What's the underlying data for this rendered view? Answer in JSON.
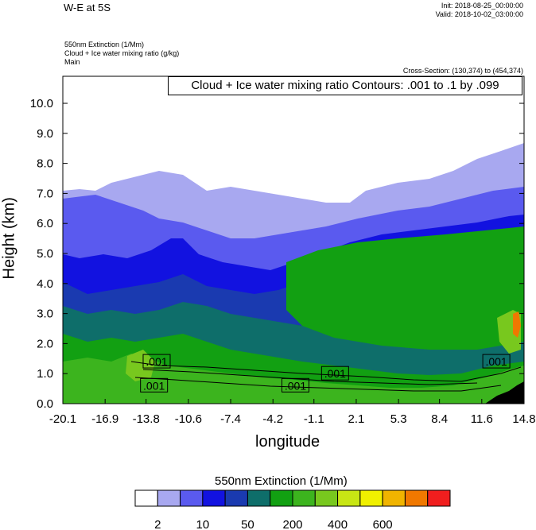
{
  "header": {
    "title": "W-E at 5S",
    "init": "Init: 2018-08-25_00:00:00",
    "valid": "Valid: 2018-10-02_03:00:00",
    "field1": "550nm Extinction   (1/Mm)",
    "field2": "Cloud + Ice water mixing ratio   (g/kg)",
    "field3": "Main",
    "cross_section": "Cross-Section: (130,374) to (454,374)",
    "contour_info": "Cloud + Ice water mixing ratio Contours: .001 to .1 by .099"
  },
  "chart_data": {
    "type": "heatmap",
    "xlabel": "longitude",
    "ylabel": "Height (km)",
    "xlim": [
      -20.1,
      14.8
    ],
    "ylim": [
      0.0,
      10.9
    ],
    "x_ticks": [
      "-20.1",
      "-16.9",
      "-13.8",
      "-10.6",
      "-7.4",
      "-4.2",
      "-1.1",
      "2.1",
      "5.3",
      "8.4",
      "11.6",
      "14.8"
    ],
    "y_ticks": [
      "0.0",
      "1.0",
      "2.0",
      "3.0",
      "4.0",
      "5.0",
      "6.0",
      "7.0",
      "8.0",
      "9.0",
      "10.0"
    ],
    "contour_labels": [
      {
        "text": ".001",
        "x": -13.0,
        "y": 1.4
      },
      {
        "text": ".001",
        "x": -13.2,
        "y": 0.6
      },
      {
        "text": ".001",
        "x": -2.5,
        "y": 0.6
      },
      {
        "text": ".001",
        "x": 0.5,
        "y": 1.0
      },
      {
        "text": ".001",
        "x": 12.7,
        "y": 1.4
      }
    ],
    "colorbar": {
      "title": "550nm Extinction  (1/Mm)",
      "labels": [
        "2",
        "10",
        "50",
        "200",
        "400",
        "600"
      ],
      "colors": [
        "#ffffff",
        "#a8a8f0",
        "#5a5aef",
        "#1212e0",
        "#1a3ab0",
        "#0e6e6a",
        "#12a012",
        "#3cb41e",
        "#78c81e",
        "#c8e614",
        "#f0f000",
        "#f0b400",
        "#f07800",
        "#f01e1e"
      ]
    }
  }
}
